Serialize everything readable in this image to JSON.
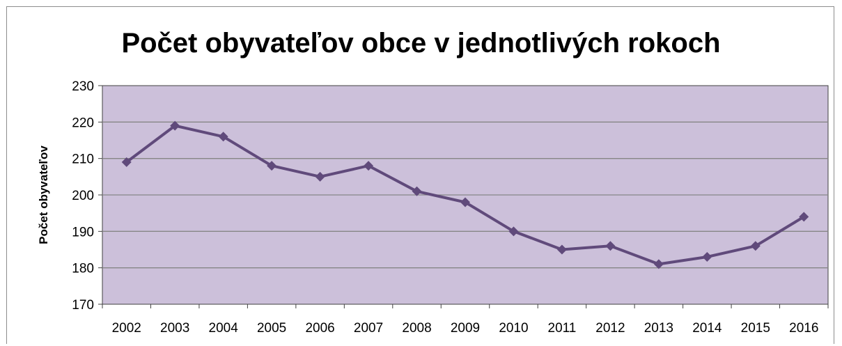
{
  "chart_data": {
    "type": "line",
    "title": "Počet obyvateľov obce v jednotlivých rokoch",
    "xlabel": "",
    "ylabel": "Počet obyvateľov",
    "categories": [
      "2002",
      "2003",
      "2004",
      "2005",
      "2006",
      "2007",
      "2008",
      "2009",
      "2010",
      "2011",
      "2012",
      "2013",
      "2014",
      "2015",
      "2016"
    ],
    "series": [
      {
        "values": [
          209,
          219,
          216,
          208,
          205,
          208,
          201,
          198,
          190,
          185,
          186,
          181,
          183,
          186,
          194
        ]
      }
    ],
    "ylim": [
      170,
      230
    ],
    "yticks": [
      170,
      180,
      190,
      200,
      210,
      220,
      230
    ],
    "grid": true,
    "legend": "none",
    "colors": {
      "plot_background": "#ccc0da",
      "line": "#604a7b",
      "gridline": "#868686",
      "plot_border": "#404040"
    }
  }
}
